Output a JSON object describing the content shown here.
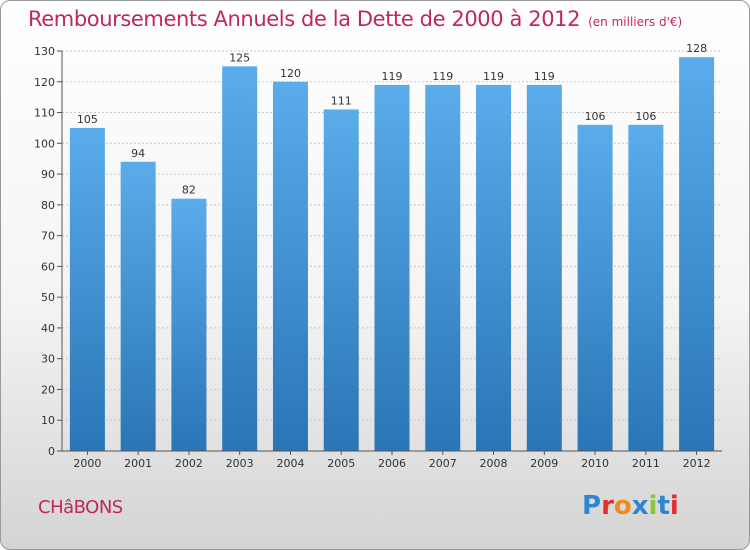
{
  "title": "Remboursements Annuels de la Dette de 2000 à 2012",
  "title_unit": "(en milliers d'€)",
  "town": "CHâBONS",
  "logo": {
    "text": "Proxiti",
    "letter_colors": [
      "#2e86d1",
      "#e3302f",
      "#f08a1c",
      "#2e86d1",
      "#8cc63f",
      "#2e86d1",
      "#e3302f"
    ]
  },
  "colors": {
    "title": "#c0275b",
    "bar_top": "#5aaceb",
    "bar_bottom": "#2a75b5",
    "axis": "#555555"
  },
  "chart_data": {
    "type": "bar",
    "categories": [
      "2000",
      "2001",
      "2002",
      "2003",
      "2004",
      "2005",
      "2006",
      "2007",
      "2008",
      "2009",
      "2010",
      "2011",
      "2012"
    ],
    "values": [
      105,
      94,
      82,
      125,
      120,
      111,
      119,
      119,
      119,
      119,
      106,
      106,
      128
    ],
    "ylim": [
      0,
      130
    ],
    "yticks": [
      0,
      10,
      20,
      30,
      40,
      50,
      60,
      70,
      80,
      90,
      100,
      110,
      120,
      130
    ],
    "grid": true,
    "xlabel": "",
    "ylabel": ""
  }
}
